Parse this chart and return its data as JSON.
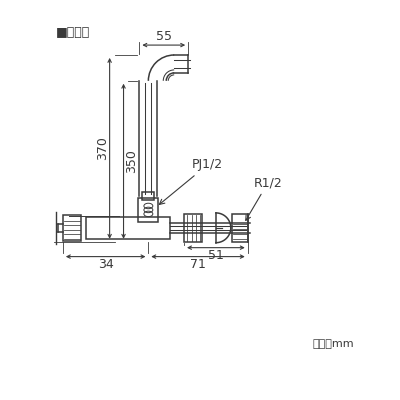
{
  "title": "■寸法図",
  "bg_color": "#ffffff",
  "line_color": "#3a3a3a",
  "unit_label": "単位：mm",
  "labels": {
    "PJ12": "PJ1/2",
    "R12": "R1/2"
  },
  "dim_55": "55",
  "dim_370": "370",
  "dim_350": "350",
  "dim_51": "51",
  "dim_34": "34",
  "dim_71": "71"
}
